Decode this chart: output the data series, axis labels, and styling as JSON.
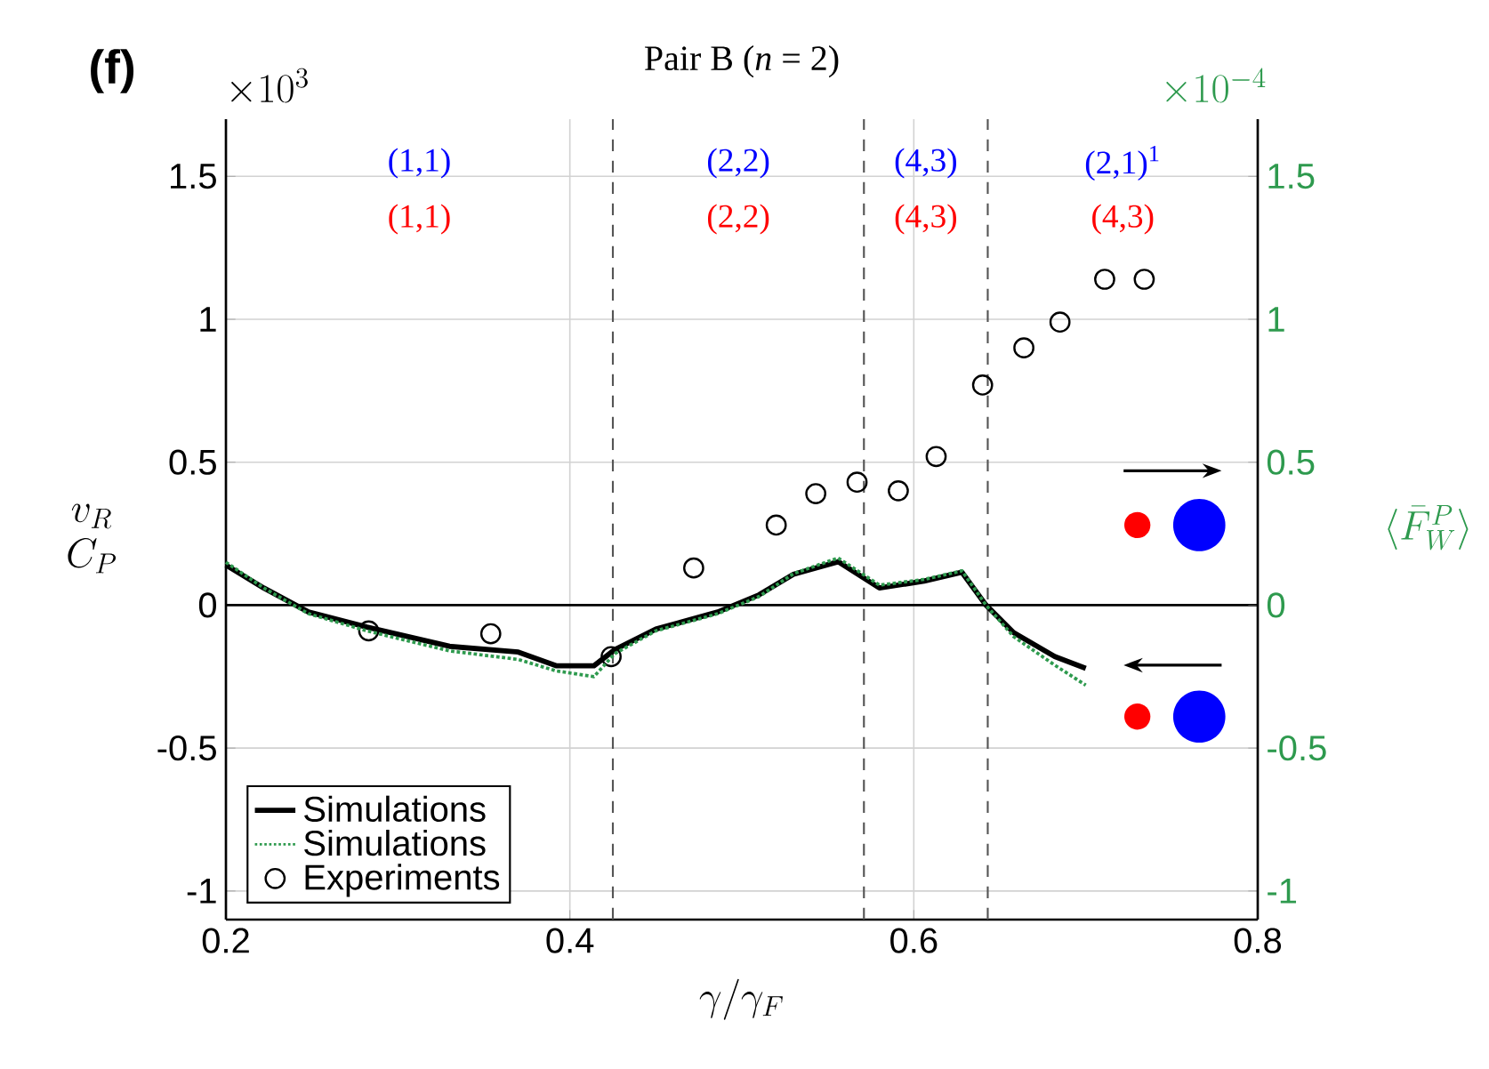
{
  "chart_data": {
    "type": "line",
    "title": "Pair B (*n* = 2)",
    "xlabel": "\\gamma/\\gamma_F",
    "ylabel": "\\begin{array}{c}v_R\\\\ C_P\\end{array}",
    "y2label": "\\langle \\bar{F}_W^P \\rangle",
    "xlim": [
      0.2,
      0.8
    ],
    "xticks": [
      0.2,
      0.4,
      0.6,
      0.8
    ],
    "ylim": [
      -1.1,
      1.7
    ],
    "yticks": [
      -1,
      -0.5,
      0,
      0.5,
      1,
      1.5
    ],
    "y2lim": [
      -1.1,
      1.7
    ],
    "y2ticks": [
      -1,
      -0.5,
      0,
      0.5,
      1,
      1.5
    ],
    "grid": true,
    "legend": "bottom left",
    "series": [
      {
        "name": "Simulations",
        "color": "#000000",
        "marker": "none",
        "line_style": "solid",
        "x": [
          0.2,
          0.222,
          0.248,
          0.282,
          0.33,
          0.37,
          0.392,
          0.414,
          0.426,
          0.45,
          0.486,
          0.51,
          0.53,
          0.556,
          0.58,
          0.606,
          0.628,
          0.642,
          0.658,
          0.682,
          0.7
        ],
        "values": [
          0.14,
          0.06,
          -0.024,
          -0.077,
          -0.144,
          -0.164,
          -0.212,
          -0.212,
          -0.156,
          -0.084,
          -0.024,
          0.036,
          0.108,
          0.152,
          0.06,
          0.084,
          0.115,
          0,
          -0.096,
          -0.18,
          -0.221
        ]
      },
      {
        "name": "Simulations",
        "color": "#2e9a4e",
        "marker": "none",
        "line_style": "dotted",
        "axis": "y2",
        "x": [
          0.2,
          0.222,
          0.248,
          0.282,
          0.33,
          0.37,
          0.392,
          0.414,
          0.426,
          0.45,
          0.486,
          0.51,
          0.53,
          0.556,
          0.58,
          0.606,
          0.628,
          0.642,
          0.658,
          0.682,
          0.7
        ],
        "values": [
          0.15,
          0.06,
          -0.03,
          -0.09,
          -0.16,
          -0.19,
          -0.23,
          -0.25,
          -0.17,
          -0.09,
          -0.03,
          0.03,
          0.11,
          0.165,
          0.07,
          0.09,
          0.12,
          0,
          -0.11,
          -0.21,
          -0.28
        ]
      },
      {
        "name": "Experiments",
        "type": "scatter",
        "color": "#000000",
        "marker": "circle",
        "x": [
          0.283,
          0.354,
          0.424,
          0.472,
          0.52,
          0.543,
          0.567,
          0.591,
          0.613,
          0.64,
          0.664,
          0.685,
          0.711,
          0.734
        ],
        "values": [
          -0.09,
          -0.1,
          -0.18,
          0.13,
          0.28,
          0.39,
          0.43,
          0.4,
          0.52,
          0.77,
          0.9,
          0.99,
          1.14,
          1.14
        ]
      }
    ],
    "ref_lines": [
      {
        "axis": "x",
        "value": 0.425,
        "color": "#555555",
        "line_style": "dashed"
      },
      {
        "axis": "x",
        "value": 0.571,
        "color": "#555555",
        "line_style": "dashed"
      },
      {
        "axis": "x",
        "value": 0.643,
        "color": "#555555",
        "line_style": "dashed"
      },
      {
        "axis": "y",
        "value": 0,
        "color": "#000000",
        "line_style": "solid"
      }
    ],
    "annotations": [
      "(f)",
      "\\times 10^{3}",
      "\\times 10^{-4}",
      "(1,1)",
      "(1,1)",
      "(2,2)",
      "(2,2)",
      "(4,3)",
      "(4,3)",
      "(2,1)$^{1}$",
      "(4,3)"
    ]
  }
}
